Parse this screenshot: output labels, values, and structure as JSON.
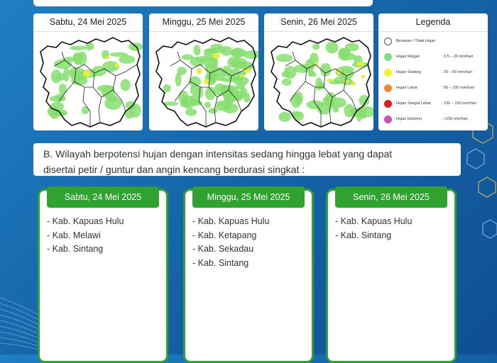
{
  "maps": [
    {
      "date": "Sabtu, 24 Mei 2025"
    },
    {
      "date": "Minggu, 25 Mei 2025"
    },
    {
      "date": "Senin, 26 Mei 2025"
    }
  ],
  "legend": {
    "title": "Legenda",
    "items": [
      {
        "name": "Berawan / Tidak Hujan",
        "range": "",
        "color": "#ffffff"
      },
      {
        "name": "Hujan Ringan",
        "range": ": 0.5 – 20 mm/hari",
        "color": "#7ee07e"
      },
      {
        "name": "Hujan Sedang",
        "range": ": 20 – 50 mm/hari",
        "color": "#f3f32a"
      },
      {
        "name": "Hujan Lebat",
        "range": ": 50 – 100 mm/hari",
        "color": "#ef8a2a"
      },
      {
        "name": "Hujan Sangat Lebat",
        "range": ": 100 – 150 mm/hari",
        "color": "#e21b1b"
      },
      {
        "name": "Hujan Ekstrem",
        "range": ": >150 mm/hari",
        "color": "#c94fb8"
      }
    ]
  },
  "section_b": {
    "line1": "B. Wilayah berpotensi hujan dengan intensitas sedang hingga lebat yang dapat",
    "line2": "disertai petir / guntur dan angin kencang berdurasi singkat :"
  },
  "days": [
    {
      "title": "Sabtu, 24 Mei 2025",
      "items": [
        "- Kab. Kapuas Hulu",
        "- Kab. Melawi",
        "- Kab. Sintang"
      ]
    },
    {
      "title": "Minggu, 25 Mei 2025",
      "items": [
        "- Kab. Kapuas Hulu",
        "- Kab. Ketapang",
        "- Kab. Sekadau",
        "- Kab. Sintang"
      ]
    },
    {
      "title": "Senin, 26 Mei 2025",
      "items": [
        "- Kab. Kapuas Hulu",
        "- Kab. Sintang"
      ]
    }
  ]
}
